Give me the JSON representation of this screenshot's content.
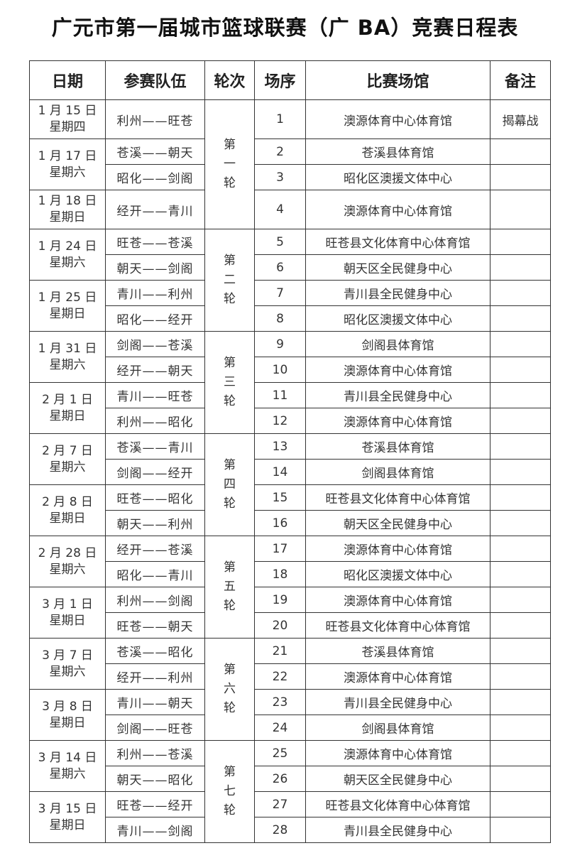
{
  "title": "广元市第一届城市篮球联赛（广 BA）竞赛日程表",
  "headers": {
    "date": "日期",
    "teams": "参赛队伍",
    "round": "轮次",
    "no": "场序",
    "venue": "比赛场馆",
    "note": "备注"
  },
  "rounds": [
    {
      "label": "第一轮",
      "days": [
        {
          "date": "1 月 15 日",
          "weekday": "星期四",
          "matches": [
            {
              "teams": "利州——旺苍",
              "no": "1",
              "venue": "澳源体育中心体育馆",
              "note": "揭幕战"
            }
          ]
        },
        {
          "date": "1 月 17 日",
          "weekday": "星期六",
          "matches": [
            {
              "teams": "苍溪——朝天",
              "no": "2",
              "venue": "苍溪县体育馆",
              "note": ""
            },
            {
              "teams": "昭化——剑阁",
              "no": "3",
              "venue": "昭化区澳援文体中心",
              "note": ""
            }
          ]
        },
        {
          "date": "1 月 18 日",
          "weekday": "星期日",
          "matches": [
            {
              "teams": "经开——青川",
              "no": "4",
              "venue": "澳源体育中心体育馆",
              "note": ""
            }
          ]
        }
      ]
    },
    {
      "label": "第二轮",
      "days": [
        {
          "date": "1 月 24 日",
          "weekday": "星期六",
          "matches": [
            {
              "teams": "旺苍——苍溪",
              "no": "5",
              "venue": "旺苍县文化体育中心体育馆",
              "note": ""
            },
            {
              "teams": "朝天——剑阁",
              "no": "6",
              "venue": "朝天区全民健身中心",
              "note": ""
            }
          ]
        },
        {
          "date": "1 月 25 日",
          "weekday": "星期日",
          "matches": [
            {
              "teams": "青川——利州",
              "no": "7",
              "venue": "青川县全民健身中心",
              "note": ""
            },
            {
              "teams": "昭化——经开",
              "no": "8",
              "venue": "昭化区澳援文体中心",
              "note": ""
            }
          ]
        }
      ]
    },
    {
      "label": "第三轮",
      "days": [
        {
          "date": "1 月 31 日",
          "weekday": "星期六",
          "matches": [
            {
              "teams": "剑阁——苍溪",
              "no": "9",
              "venue": "剑阁县体育馆",
              "note": ""
            },
            {
              "teams": "经开——朝天",
              "no": "10",
              "venue": "澳源体育中心体育馆",
              "note": ""
            }
          ]
        },
        {
          "date": "2 月 1 日",
          "weekday": "星期日",
          "matches": [
            {
              "teams": "青川——旺苍",
              "no": "11",
              "venue": "青川县全民健身中心",
              "note": ""
            },
            {
              "teams": "利州——昭化",
              "no": "12",
              "venue": "澳源体育中心体育馆",
              "note": ""
            }
          ]
        }
      ]
    },
    {
      "label": "第四轮",
      "days": [
        {
          "date": "2 月 7 日",
          "weekday": "星期六",
          "matches": [
            {
              "teams": "苍溪——青川",
              "no": "13",
              "venue": "苍溪县体育馆",
              "note": ""
            },
            {
              "teams": "剑阁——经开",
              "no": "14",
              "venue": "剑阁县体育馆",
              "note": ""
            }
          ]
        },
        {
          "date": "2 月 8 日",
          "weekday": "星期日",
          "matches": [
            {
              "teams": "旺苍——昭化",
              "no": "15",
              "venue": "旺苍县文化体育中心体育馆",
              "note": ""
            },
            {
              "teams": "朝天——利州",
              "no": "16",
              "venue": "朝天区全民健身中心",
              "note": ""
            }
          ]
        }
      ]
    },
    {
      "label": "第五轮",
      "days": [
        {
          "date": "2 月 28 日",
          "weekday": "星期六",
          "matches": [
            {
              "teams": "经开——苍溪",
              "no": "17",
              "venue": "澳源体育中心体育馆",
              "note": ""
            },
            {
              "teams": "昭化——青川",
              "no": "18",
              "venue": "昭化区澳援文体中心",
              "note": ""
            }
          ]
        },
        {
          "date": "3 月 1 日",
          "weekday": "星期日",
          "matches": [
            {
              "teams": "利州——剑阁",
              "no": "19",
              "venue": "澳源体育中心体育馆",
              "note": ""
            },
            {
              "teams": "旺苍——朝天",
              "no": "20",
              "venue": "旺苍县文化体育中心体育馆",
              "note": ""
            }
          ]
        }
      ]
    },
    {
      "label": "第六轮",
      "days": [
        {
          "date": "3 月 7 日",
          "weekday": "星期六",
          "matches": [
            {
              "teams": "苍溪——昭化",
              "no": "21",
              "venue": "苍溪县体育馆",
              "note": ""
            },
            {
              "teams": "经开——利州",
              "no": "22",
              "venue": "澳源体育中心体育馆",
              "note": ""
            }
          ]
        },
        {
          "date": "3 月 8 日",
          "weekday": "星期日",
          "matches": [
            {
              "teams": "青川——朝天",
              "no": "23",
              "venue": "青川县全民健身中心",
              "note": ""
            },
            {
              "teams": "剑阁——旺苍",
              "no": "24",
              "venue": "剑阁县体育馆",
              "note": ""
            }
          ]
        }
      ]
    },
    {
      "label": "第七轮",
      "days": [
        {
          "date": "3 月 14 日",
          "weekday": "星期六",
          "matches": [
            {
              "teams": "利州——苍溪",
              "no": "25",
              "venue": "澳源体育中心体育馆",
              "note": ""
            },
            {
              "teams": "朝天——昭化",
              "no": "26",
              "venue": "朝天区全民健身中心",
              "note": ""
            }
          ]
        },
        {
          "date": "3 月 15 日",
          "weekday": "星期日",
          "matches": [
            {
              "teams": "旺苍——经开",
              "no": "27",
              "venue": "旺苍县文化体育中心体育馆",
              "note": ""
            },
            {
              "teams": "青川——剑阁",
              "no": "28",
              "venue": "青川县全民健身中心",
              "note": ""
            }
          ]
        }
      ]
    }
  ]
}
